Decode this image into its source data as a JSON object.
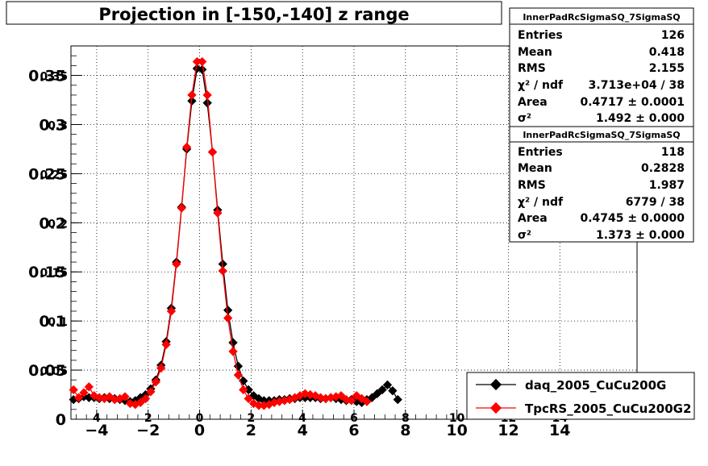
{
  "title": "Projection in [-150,-140] z range",
  "stat_boxes": [
    {
      "name": "InnerPadRcSigmaSQ_7SigmaSQ",
      "rows": [
        {
          "label": "Entries",
          "value": "126"
        },
        {
          "label": "Mean",
          "value": "0.418"
        },
        {
          "label": "RMS",
          "value": "2.155"
        },
        {
          "label": "χ² / ndf",
          "value": "3.713e+04 / 38"
        },
        {
          "label": "Area",
          "value": "0.4717 ± 0.0001"
        },
        {
          "label": "σ²",
          "value": "1.492 ± 0.000"
        }
      ]
    },
    {
      "name": "InnerPadRcSigmaSQ_7SigmaSQ",
      "rows": [
        {
          "label": "Entries",
          "value": "118"
        },
        {
          "label": "Mean",
          "value": "0.2828"
        },
        {
          "label": "RMS",
          "value": "1.987"
        },
        {
          "label": "χ² / ndf",
          "value": "6779 / 38"
        },
        {
          "label": "Area",
          "value": "0.4745 ± 0.0000"
        },
        {
          "label": "σ²",
          "value": "1.373 ± 0.000"
        }
      ]
    }
  ],
  "colors": {
    "series_black": "#000000",
    "series_red": "#ff0000",
    "grid": "#000000"
  },
  "chart_data": {
    "type": "scatter",
    "title": "Projection in [-150,-140] z range",
    "xlim": [
      -5,
      17
    ],
    "ylim": [
      0,
      0.38
    ],
    "x_ticks": [
      "−4",
      "−2",
      "0",
      "2",
      "4",
      "6",
      "8",
      "10",
      "12",
      "14"
    ],
    "x_tick_values": [
      -4,
      -2,
      0,
      2,
      4,
      6,
      8,
      10,
      12,
      14
    ],
    "inner_x_ticks": [
      "4",
      "2",
      "0",
      "2",
      "4",
      "6",
      "8",
      "10",
      "12",
      "14"
    ],
    "y_ticks": [
      "0",
      "0.05",
      "0.1",
      "0.15",
      "0.2",
      "0.25",
      "0.3",
      "0.35"
    ],
    "y_tick_values": [
      0,
      0.05,
      0.1,
      0.15,
      0.2,
      0.25,
      0.3,
      0.35
    ],
    "inner_y_ticks": [
      "0.05",
      "0.1",
      "0.15",
      "0.2",
      "0.25",
      "0.3",
      "0.35"
    ],
    "grid": true,
    "legend_position": "bottom-right",
    "series": [
      {
        "name": "daq_2005_CuCu200G",
        "color": "#000000",
        "x": [
          -4.9,
          -4.7,
          -4.5,
          -4.3,
          -4.1,
          -3.9,
          -3.7,
          -3.5,
          -3.3,
          -3.1,
          -2.9,
          -2.7,
          -2.5,
          -2.3,
          -2.1,
          -1.9,
          -1.7,
          -1.5,
          -1.3,
          -1.1,
          -0.9,
          -0.7,
          -0.5,
          -0.3,
          -0.1,
          0.1,
          0.3,
          0.5,
          0.7,
          0.9,
          1.1,
          1.3,
          1.5,
          1.7,
          1.9,
          2.1,
          2.3,
          2.5,
          2.7,
          2.9,
          3.1,
          3.3,
          3.5,
          3.7,
          3.9,
          4.1,
          4.3,
          4.5,
          4.7,
          4.9,
          5.1,
          5.3,
          5.5,
          5.7,
          5.9,
          6.1,
          6.3,
          6.5,
          6.7,
          6.9,
          7.1,
          7.3,
          7.5,
          7.7
        ],
        "y": [
          0.02,
          0.021,
          0.023,
          0.022,
          0.022,
          0.021,
          0.022,
          0.021,
          0.021,
          0.02,
          0.019,
          0.018,
          0.019,
          0.022,
          0.025,
          0.031,
          0.04,
          0.055,
          0.079,
          0.113,
          0.16,
          0.216,
          0.275,
          0.324,
          0.357,
          0.356,
          0.322,
          0.272,
          0.213,
          0.158,
          0.111,
          0.078,
          0.054,
          0.039,
          0.03,
          0.024,
          0.021,
          0.019,
          0.019,
          0.019,
          0.02,
          0.02,
          0.021,
          0.021,
          0.022,
          0.022,
          0.022,
          0.022,
          0.021,
          0.021,
          0.022,
          0.021,
          0.02,
          0.019,
          0.02,
          0.018,
          0.017,
          0.02,
          0.022,
          0.026,
          0.03,
          0.035,
          0.029,
          0.02
        ]
      },
      {
        "name": "TpcRS_2005_CuCu200G2",
        "color": "#ff0000",
        "x": [
          -4.9,
          -4.7,
          -4.5,
          -4.3,
          -4.1,
          -3.9,
          -3.7,
          -3.5,
          -3.3,
          -3.1,
          -2.9,
          -2.7,
          -2.5,
          -2.3,
          -2.1,
          -1.9,
          -1.7,
          -1.5,
          -1.3,
          -1.1,
          -0.9,
          -0.7,
          -0.5,
          -0.3,
          -0.1,
          0.1,
          0.3,
          0.5,
          0.7,
          0.9,
          1.1,
          1.3,
          1.5,
          1.7,
          1.9,
          2.1,
          2.3,
          2.5,
          2.7,
          2.9,
          3.1,
          3.3,
          3.5,
          3.7,
          3.9,
          4.1,
          4.3,
          4.5,
          4.7,
          4.9,
          5.1,
          5.3,
          5.5,
          5.7,
          5.9,
          6.1,
          6.3,
          6.5
        ],
        "y": [
          0.03,
          0.022,
          0.027,
          0.033,
          0.024,
          0.022,
          0.021,
          0.023,
          0.02,
          0.021,
          0.023,
          0.016,
          0.015,
          0.017,
          0.021,
          0.028,
          0.038,
          0.052,
          0.076,
          0.11,
          0.158,
          0.215,
          0.277,
          0.33,
          0.364,
          0.364,
          0.33,
          0.272,
          0.21,
          0.151,
          0.103,
          0.069,
          0.045,
          0.03,
          0.021,
          0.016,
          0.014,
          0.014,
          0.015,
          0.017,
          0.018,
          0.019,
          0.02,
          0.022,
          0.024,
          0.026,
          0.025,
          0.024,
          0.022,
          0.021,
          0.022,
          0.023,
          0.024,
          0.02,
          0.019,
          0.024,
          0.021,
          0.018
        ]
      }
    ]
  }
}
